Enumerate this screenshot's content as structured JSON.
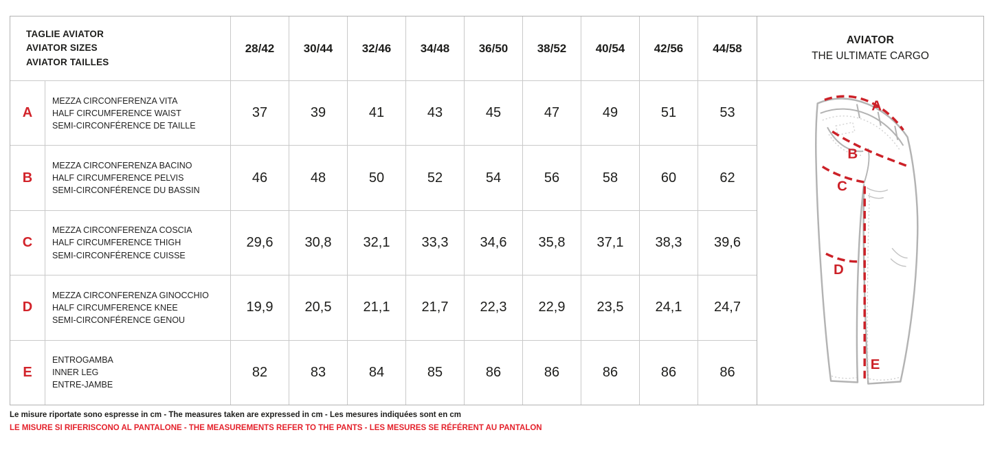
{
  "colors": {
    "accent_red": "#d2232a",
    "diagram_red": "#cc2128",
    "footer_red": "#e4212b",
    "diagram_gray": "#b3b3b3"
  },
  "table": {
    "header": {
      "title_lines": [
        "TAGLIE AVIATOR",
        "AVIATOR SIZES",
        "AVIATOR TAILLES"
      ],
      "sizes": [
        "28/42",
        "30/44",
        "32/46",
        "34/48",
        "36/50",
        "38/52",
        "40/54",
        "42/56",
        "44/58"
      ]
    },
    "rows": [
      {
        "letter": "A",
        "labels": [
          "MEZZA CIRCONFERENZA VITA",
          "HALF CIRCUMFERENCE WAIST",
          "SEMI-CIRCONFÉRENCE DE TAILLE"
        ],
        "values": [
          "37",
          "39",
          "41",
          "43",
          "45",
          "47",
          "49",
          "51",
          "53"
        ]
      },
      {
        "letter": "B",
        "labels": [
          "MEZZA CIRCONFERENZA BACINO",
          "HALF CIRCUMFERENCE PELVIS",
          "SEMI-CIRCONFÉRENCE DU BASSIN"
        ],
        "values": [
          "46",
          "48",
          "50",
          "52",
          "54",
          "56",
          "58",
          "60",
          "62"
        ]
      },
      {
        "letter": "C",
        "labels": [
          "MEZZA CIRCONFERENZA COSCIA",
          "HALF CIRCUMFERENCE THIGH",
          "SEMI-CIRCONFÉRENCE CUISSE"
        ],
        "values": [
          "29,6",
          "30,8",
          "32,1",
          "33,3",
          "34,6",
          "35,8",
          "37,1",
          "38,3",
          "39,6"
        ]
      },
      {
        "letter": "D",
        "labels": [
          "MEZZA CIRCONFERENZA GINOCCHIO",
          "HALF CIRCUMFERENCE KNEE",
          "SEMI-CIRCONFÉRENCE GENOU"
        ],
        "values": [
          "19,9",
          "20,5",
          "21,1",
          "21,7",
          "22,3",
          "22,9",
          "23,5",
          "24,1",
          "24,7"
        ]
      },
      {
        "letter": "E",
        "labels": [
          "ENTROGAMBA",
          "INNER LEG",
          "ENTRE-JAMBE"
        ],
        "values": [
          "82",
          "83",
          "84",
          "85",
          "86",
          "86",
          "86",
          "86",
          "86"
        ]
      }
    ]
  },
  "panel": {
    "title": "AVIATOR",
    "subtitle": "THE ULTIMATE CARGO",
    "diagram_labels": [
      "A",
      "B",
      "C",
      "D",
      "E"
    ]
  },
  "footer": {
    "line1": "Le misure riportate sono espresse in cm - The measures taken are expressed in cm - Les mesures indiquées sont en cm",
    "line2": "LE MISURE SI RIFERISCONO AL PANTALONE - THE MEASUREMENTS REFER TO THE PANTS - LES MESURES SE RÉFÉRENT AU PANTALON"
  }
}
